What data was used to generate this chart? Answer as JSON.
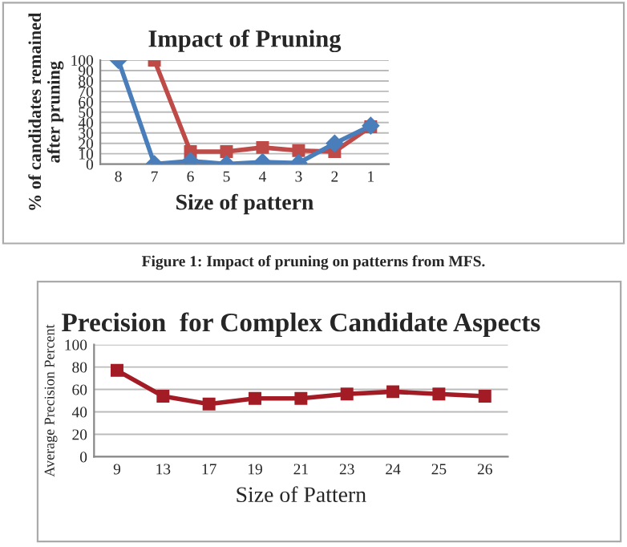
{
  "chart_data": [
    {
      "type": "line",
      "title": "Impact of Pruning",
      "xlabel": "Size of pattern",
      "ylabel": "% of candidates remained\nafter pruning",
      "categories": [
        "8",
        "7",
        "6",
        "5",
        "4",
        "3",
        "2",
        "1"
      ],
      "series": [
        {
          "color": "#4a7ebb",
          "marker": "diamond",
          "values": [
            100,
            0,
            3,
            0,
            2,
            1,
            20,
            37
          ]
        },
        {
          "color": "#be4b48",
          "marker": "square",
          "values": [
            null,
            100,
            12,
            12,
            16,
            13,
            12,
            36
          ]
        }
      ],
      "ylim": [
        0,
        100
      ],
      "yticks": [
        0,
        10,
        20,
        30,
        40,
        50,
        60,
        70,
        80,
        90,
        100
      ],
      "grid": "y",
      "line_style": "solid",
      "annotations": [
        "Figure 1: Impact of pruning on patterns from MFS."
      ]
    },
    {
      "type": "line",
      "title": "Precision  for Complex Candidate Aspects",
      "xlabel": "Size of Pattern",
      "ylabel": "Average Precision Percent",
      "categories": [
        "9",
        "13",
        "17",
        "19",
        "21",
        "23",
        "24",
        "25",
        "26"
      ],
      "series": [
        {
          "color": "#a31c25",
          "marker": "square",
          "values": [
            77,
            54,
            47,
            52,
            52,
            56,
            58,
            56,
            54
          ]
        }
      ],
      "ylim": [
        0,
        100
      ],
      "yticks": [
        0,
        20,
        40,
        60,
        80,
        100
      ],
      "grid": "y",
      "line_style": "solid"
    }
  ]
}
